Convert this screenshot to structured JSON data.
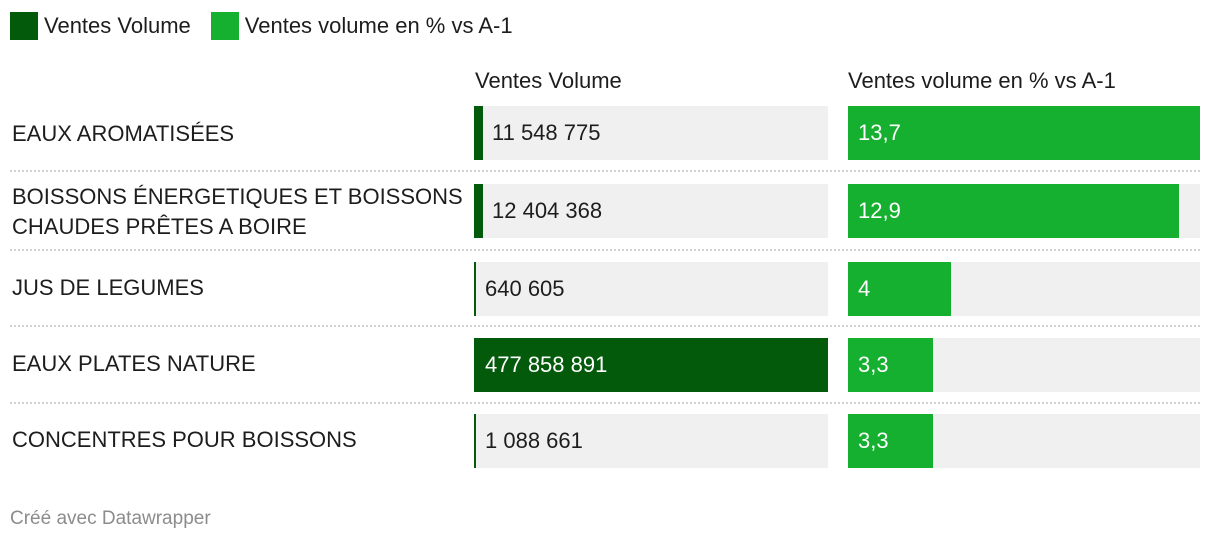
{
  "legend": [
    {
      "label": "Ventes Volume",
      "color": "#035a0b"
    },
    {
      "label": "Ventes volume en % vs A-1",
      "color": "#15b02f"
    }
  ],
  "footer": "Créé avec Datawrapper",
  "chart_data": {
    "type": "bar",
    "columns": [
      {
        "name": "Ventes Volume",
        "color": "#035a0b",
        "max": 477858891
      },
      {
        "name": "Ventes volume en % vs A-1",
        "color": "#15b02f",
        "max": 13.7
      }
    ],
    "rows": [
      {
        "category": "EAUX AROMATISÉES",
        "volume": 11548775,
        "volume_label": "11 548 775",
        "pct": 13.7,
        "pct_label": "13,7"
      },
      {
        "category": "BOISSONS ÉNERGETIQUES ET BOISSONS CHAUDES PRÊTES A BOIRE",
        "volume": 12404368,
        "volume_label": "12 404 368",
        "pct": 12.9,
        "pct_label": "12,9"
      },
      {
        "category": "JUS DE LEGUMES",
        "volume": 640605,
        "volume_label": "640 605",
        "pct": 4,
        "pct_label": "4"
      },
      {
        "category": "EAUX PLATES NATURE",
        "volume": 477858891,
        "volume_label": "477 858 891",
        "pct": 3.3,
        "pct_label": "3,3"
      },
      {
        "category": "CONCENTRES POUR BOISSONS",
        "volume": 1088661,
        "volume_label": "1 088 661",
        "pct": 3.3,
        "pct_label": "3,3"
      }
    ]
  }
}
